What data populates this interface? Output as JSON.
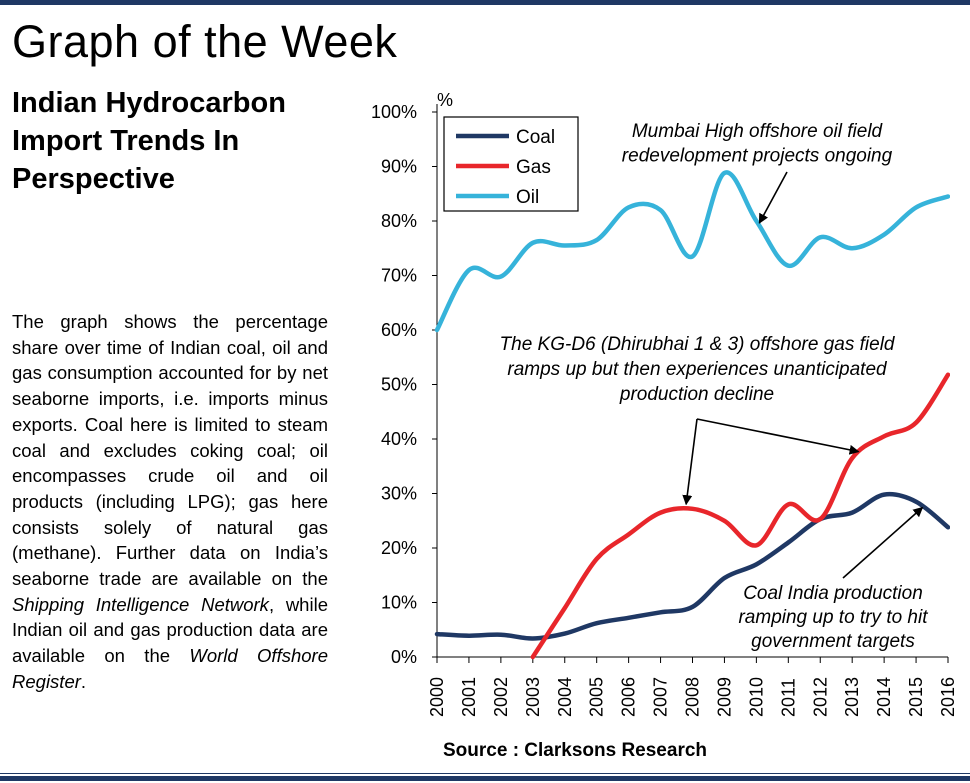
{
  "page": {
    "title": "Graph of the Week",
    "headline_lines": [
      "Indian Hydrocarbon",
      "Import Trends In",
      "Perspective"
    ],
    "description": {
      "p1": "The graph shows the percentage share over time of Indian coal, oil and gas consumption accounted for by net seaborne imports, i.e. imports minus exports. Coal here is limited to steam coal and excludes coking coal; oil encompasses crude oil and oil products (including LPG); gas here consists solely of natural gas (methane). Further data on India’s seaborne trade are available on the ",
      "link1": "Shipping Intelligence Network",
      "p2": ", while Indian oil and gas production data are available on the ",
      "link2": "World Offshore Register",
      "p3": "."
    },
    "source": "Source : Clarksons Research"
  },
  "colors": {
    "rule": "#1f3864",
    "coal": "#1f3864",
    "gas": "#e8262b",
    "oil": "#36b3da"
  },
  "chart_data": {
    "type": "line",
    "title": "",
    "ylabel": "%",
    "xlabel": "",
    "ylim": [
      0,
      100
    ],
    "y_ticks": [
      "0%",
      "10%",
      "20%",
      "30%",
      "40%",
      "50%",
      "60%",
      "70%",
      "80%",
      "90%",
      "100%"
    ],
    "categories": [
      "2000",
      "2001",
      "2002",
      "2003",
      "2004",
      "2005",
      "2006",
      "2007",
      "2008",
      "2009",
      "2010",
      "2011",
      "2012",
      "2013",
      "2014",
      "2015",
      "2016"
    ],
    "legend": "top-left",
    "series": [
      {
        "name": "Coal",
        "color": "#1f3864",
        "points": [
          [
            2000,
            4.2
          ],
          [
            2001,
            3.9
          ],
          [
            2002,
            4.1
          ],
          [
            2003,
            3.4
          ],
          [
            2004,
            4.3
          ],
          [
            2005,
            6.2
          ],
          [
            2006,
            7.2
          ],
          [
            2007,
            8.2
          ],
          [
            2008,
            9.2
          ],
          [
            2009,
            14.5
          ],
          [
            2010,
            17.0
          ],
          [
            2011,
            21.0
          ],
          [
            2012,
            25.3
          ],
          [
            2013,
            26.5
          ],
          [
            2014,
            29.8
          ],
          [
            2015,
            28.5
          ],
          [
            2016,
            23.8
          ]
        ]
      },
      {
        "name": "Gas",
        "color": "#e8262b",
        "points": [
          [
            2003,
            0
          ],
          [
            2004,
            9.0
          ],
          [
            2005,
            18.0
          ],
          [
            2006,
            22.5
          ],
          [
            2007,
            26.5
          ],
          [
            2008,
            27.2
          ],
          [
            2009,
            25.0
          ],
          [
            2010,
            20.5
          ],
          [
            2011,
            28.0
          ],
          [
            2012,
            25.3
          ],
          [
            2013,
            36.5
          ],
          [
            2014,
            40.5
          ],
          [
            2015,
            43.0
          ],
          [
            2016,
            51.8
          ]
        ]
      },
      {
        "name": "Oil",
        "color": "#36b3da",
        "points": [
          [
            2000,
            60.0
          ],
          [
            2001,
            71.0
          ],
          [
            2002,
            69.8
          ],
          [
            2003,
            76.0
          ],
          [
            2004,
            75.5
          ],
          [
            2005,
            76.5
          ],
          [
            2006,
            82.5
          ],
          [
            2007,
            82.0
          ],
          [
            2008,
            73.5
          ],
          [
            2009,
            88.8
          ],
          [
            2010,
            80.0
          ],
          [
            2011,
            71.8
          ],
          [
            2012,
            77.0
          ],
          [
            2013,
            75.0
          ],
          [
            2014,
            77.5
          ],
          [
            2015,
            82.5
          ],
          [
            2016,
            84.5
          ]
        ]
      }
    ],
    "annotations": {
      "oil_note": [
        "Mumbai High offshore oil field",
        "redevelopment projects ongoing"
      ],
      "gas_note": [
        "The KG-D6 (Dhirubhai 1 & 3) offshore gas field",
        "ramps up but then experiences unanticipated",
        "production decline"
      ],
      "coal_note": [
        "Coal India production",
        "ramping up to try to hit",
        "government targets"
      ]
    }
  }
}
